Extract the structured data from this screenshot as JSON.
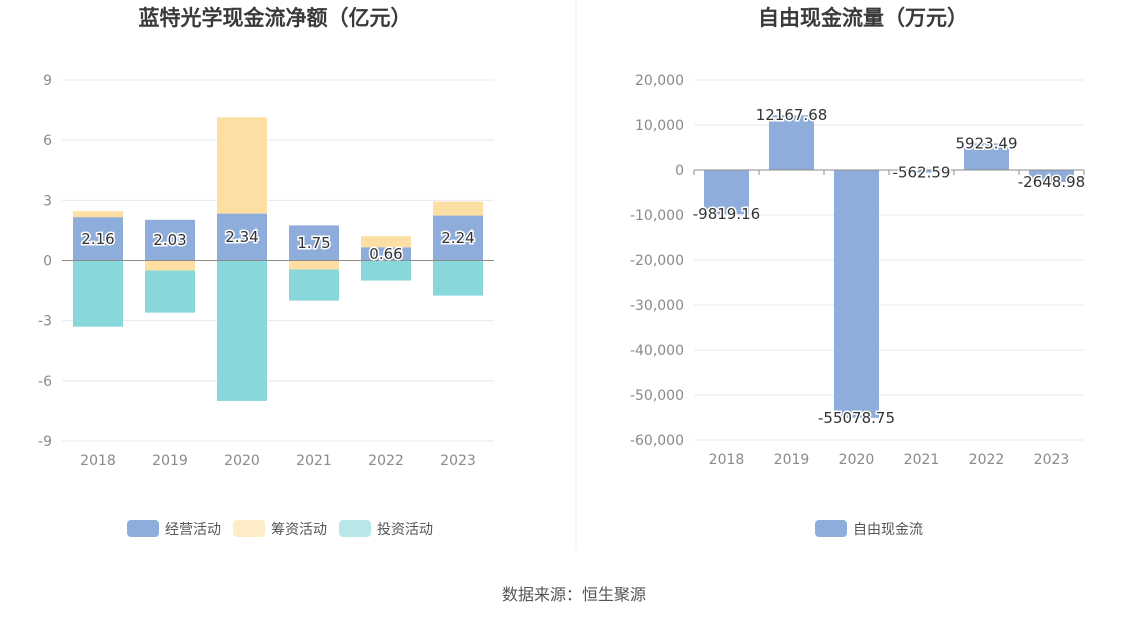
{
  "source": "数据来源：恒生聚源",
  "chart_data": [
    {
      "type": "bar",
      "stacked": true,
      "title": "蓝特光学现金流净额（亿元）",
      "categories": [
        "2018",
        "2019",
        "2020",
        "2021",
        "2022",
        "2023"
      ],
      "ylim": [
        -9,
        9
      ],
      "yticks": [
        9,
        6,
        3,
        0,
        -3,
        -6,
        -9
      ],
      "series": [
        {
          "name": "经营活动",
          "color": "#8eadda",
          "values": [
            2.16,
            2.03,
            2.34,
            1.75,
            0.66,
            2.24
          ],
          "labels": [
            "2.16",
            "2.03",
            "2.34",
            "1.75",
            "0.66",
            "2.24"
          ]
        },
        {
          "name": "筹资活动",
          "color": "#fddea3",
          "values": [
            0.3,
            -0.5,
            4.8,
            -0.45,
            0.55,
            0.7
          ]
        },
        {
          "name": "投资活动",
          "color": "#88d7da",
          "values": [
            -3.3,
            -2.1,
            -7.0,
            -1.55,
            -1.0,
            -1.75
          ]
        }
      ],
      "legend_position": "bottom",
      "grid": true
    },
    {
      "type": "bar",
      "title": "自由现金流量（万元）",
      "categories": [
        "2018",
        "2019",
        "2020",
        "2021",
        "2022",
        "2023"
      ],
      "ylim": [
        -60000,
        20000
      ],
      "yticks": [
        20000,
        10000,
        0,
        -10000,
        -20000,
        -30000,
        -40000,
        -50000,
        -60000
      ],
      "ytick_labels": [
        "20,000",
        "10,000",
        "0",
        "-10,000",
        "-20,000",
        "-30,000",
        "-40,000",
        "-50,000",
        "-60,000"
      ],
      "series": [
        {
          "name": "自由现金流",
          "color": "#8eadda",
          "values": [
            -9819.16,
            12167.68,
            -55078.75,
            -562.59,
            5923.49,
            -2648.98
          ],
          "labels": [
            "-9819.16",
            "12167.68",
            "-55078.75",
            "-562.59",
            "5923.49",
            "-2648.98"
          ]
        }
      ],
      "legend_position": "bottom",
      "grid": true
    }
  ]
}
